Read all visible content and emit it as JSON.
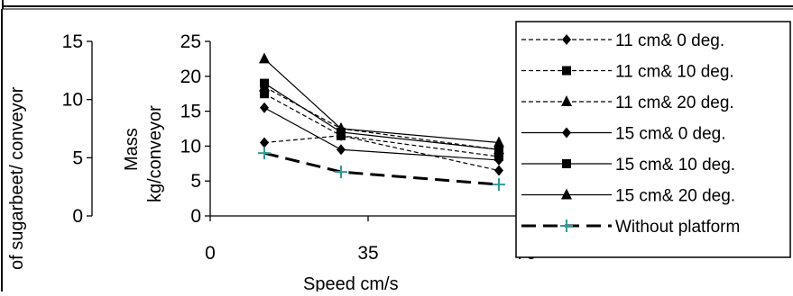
{
  "chart_data": {
    "type": "line",
    "xlabel": "Speed cm/s",
    "x_ticks": [
      "0",
      "35",
      "70"
    ],
    "xlim": [
      0,
      70
    ],
    "ylabel_outer": "of sugarbeet/ conveyor",
    "ylabel_inner_line1": "Mass",
    "ylabel_inner_line2": "kg/conveyor",
    "y_left_ticks": [
      "0",
      "5",
      "10",
      "15"
    ],
    "y_ticks": [
      "0",
      "5",
      "10",
      "15",
      "20",
      "25"
    ],
    "ylim": [
      0,
      25
    ],
    "x": [
      12,
      29,
      64
    ],
    "legend_position": "right",
    "series": [
      {
        "name": "11 cm& 0 deg.",
        "values": [
          10.5,
          11.5,
          6.5
        ],
        "marker": "diamond",
        "dash": "dashed",
        "color": "#000000"
      },
      {
        "name": "11 cm& 10 deg.",
        "values": [
          17.5,
          11.5,
          8.5
        ],
        "marker": "square",
        "dash": "dashed",
        "color": "#000000"
      },
      {
        "name": "11 cm& 20 deg.",
        "values": [
          18.5,
          12.5,
          9.5
        ],
        "marker": "triangle",
        "dash": "dashed",
        "color": "#000000"
      },
      {
        "name": "15 cm& 0 deg.",
        "values": [
          15.5,
          9.5,
          8.0
        ],
        "marker": "diamond",
        "dash": "solid",
        "color": "#000000"
      },
      {
        "name": "15 cm& 10 deg.",
        "values": [
          19.0,
          12.0,
          9.5
        ],
        "marker": "square",
        "dash": "solid",
        "color": "#000000"
      },
      {
        "name": "15 cm& 20 deg.",
        "values": [
          22.5,
          12.5,
          10.5
        ],
        "marker": "triangle",
        "dash": "solid",
        "color": "#000000"
      },
      {
        "name": "Without platform",
        "values": [
          9.0,
          6.3,
          4.5
        ],
        "marker": "plus",
        "dash": "longdash",
        "color": "#000000",
        "marker_color": "#2e9c9c"
      }
    ]
  }
}
